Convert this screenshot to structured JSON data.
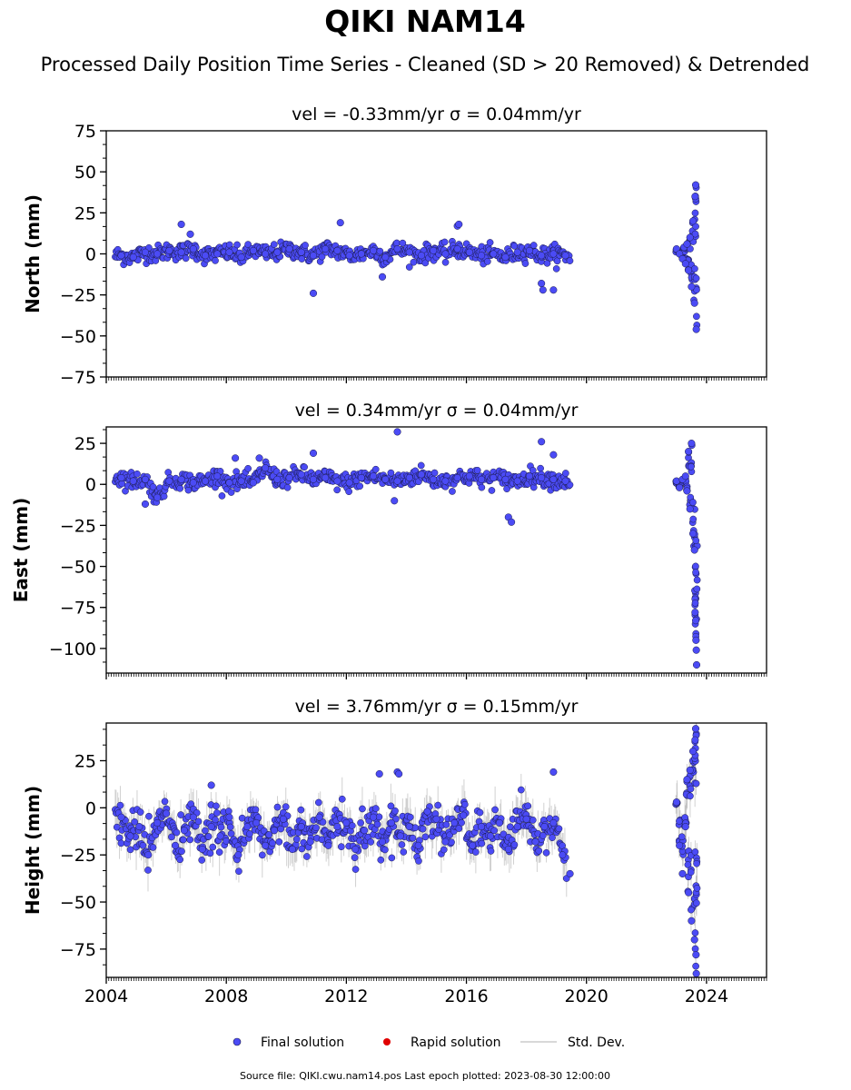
{
  "figure": {
    "title": "QIKI NAM14",
    "subtitle": "Processed Daily Position Time Series - Cleaned (SD > 20 Removed) & Detrended",
    "footer": "Source file: QIKI.cwu.nam14.pos  Last epoch plotted: 2023-08-30 12:00:00"
  },
  "legend": {
    "items": [
      {
        "label": "Final solution",
        "kind": "dot",
        "color": "#4b4bf5"
      },
      {
        "label": "Rapid solution",
        "kind": "dot",
        "color": "#e00000"
      },
      {
        "label": "Std. Dev.",
        "kind": "line",
        "color": "#cccccc"
      }
    ]
  },
  "colors": {
    "final": "#4b4bf5",
    "final_edge": "#1a1a4a",
    "rapid": "#e00000",
    "stddev": "#bdbdbd"
  },
  "chart_data": [
    {
      "type": "scatter",
      "panel_title": "vel = -0.33mm/yr   σ = 0.04mm/yr",
      "ylabel": "North (mm)",
      "ylim": [
        -75,
        75
      ],
      "yticks": [
        -75,
        -50,
        -25,
        0,
        25,
        50,
        75
      ],
      "ytick_labels": [
        "−75",
        "−50",
        "−25",
        "0",
        "25",
        "50",
        "75"
      ],
      "xlim": [
        2004.0,
        2026.0
      ],
      "xticks": [
        2004,
        2008,
        2012,
        2016,
        2020,
        2024
      ],
      "show_xtick_labels": false,
      "series": [
        {
          "x": [
            2004.5,
            2004.9,
            2005.3,
            2005.7,
            2006.1,
            2006.5,
            2006.9,
            2007.3,
            2007.7,
            2008.1,
            2008.5,
            2008.9,
            2009.3,
            2009.7,
            2010.1,
            2010.5,
            2010.9,
            2011.3,
            2011.7,
            2012.1,
            2012.5,
            2012.9,
            2013.3,
            2013.7,
            2014.1,
            2014.5,
            2014.9,
            2015.3,
            2015.7,
            2016.1,
            2016.5,
            2016.9,
            2017.3,
            2017.7,
            2018.1,
            2018.5,
            2018.9,
            2019.3
          ],
          "y": [
            -1,
            -2,
            1,
            0,
            2,
            1,
            3,
            -1,
            0,
            1,
            -2,
            2,
            0,
            1,
            3,
            1,
            -1,
            3,
            2,
            -1,
            0,
            2,
            -2,
            3,
            1,
            -1,
            2,
            0,
            3,
            1,
            -1,
            0,
            -2,
            1,
            2,
            -1,
            0,
            -1
          ]
        },
        {
          "x": [
            2006.5,
            2006.8,
            2010.9,
            2011.8,
            2013.2,
            2015.7,
            2015.75,
            2018.5,
            2018.55,
            2018.9
          ],
          "y": [
            18,
            12,
            -24,
            19,
            -14,
            17,
            18,
            -18,
            -22,
            -22
          ]
        },
        {
          "x": [
            2023.0,
            2023.1,
            2023.2,
            2023.25,
            2023.3,
            2023.35,
            2023.4,
            2023.45,
            2023.5,
            2023.55,
            2023.6,
            2023.62,
            2023.64,
            2023.66
          ],
          "y": [
            3,
            0,
            -3,
            4,
            -6,
            6,
            -10,
            10,
            -20,
            20,
            -30,
            35,
            42,
            -46
          ]
        }
      ]
    },
    {
      "type": "scatter",
      "panel_title": "vel = 0.34mm/yr   σ = 0.04mm/yr",
      "ylabel": "East (mm)",
      "ylim": [
        -115,
        35
      ],
      "yticks": [
        -100,
        -75,
        -50,
        -25,
        0,
        25
      ],
      "ytick_labels": [
        "−100",
        "−75",
        "−50",
        "−25",
        "0",
        "25"
      ],
      "xlim": [
        2004.0,
        2026.0
      ],
      "xticks": [
        2004,
        2008,
        2012,
        2016,
        2020,
        2024
      ],
      "show_xtick_labels": false,
      "series": [
        {
          "x": [
            2004.5,
            2004.9,
            2005.3,
            2005.7,
            2006.1,
            2006.5,
            2006.9,
            2007.3,
            2007.7,
            2008.1,
            2008.5,
            2008.9,
            2009.3,
            2009.7,
            2010.1,
            2010.5,
            2010.9,
            2011.3,
            2011.7,
            2012.1,
            2012.5,
            2012.9,
            2013.3,
            2013.7,
            2014.1,
            2014.5,
            2014.9,
            2015.3,
            2015.7,
            2016.1,
            2016.5,
            2016.9,
            2017.3,
            2017.7,
            2018.1,
            2018.5,
            2018.9,
            2019.3
          ],
          "y": [
            4,
            2,
            3,
            -8,
            2,
            3,
            1,
            2,
            5,
            1,
            2,
            1,
            10,
            3,
            4,
            6,
            3,
            4,
            2,
            1,
            4,
            5,
            3,
            2,
            4,
            6,
            3,
            2,
            4,
            5,
            3,
            4,
            3,
            2,
            5,
            4,
            3,
            2
          ]
        },
        {
          "x": [
            2005.3,
            2008.3,
            2009.1,
            2010.9,
            2013.6,
            2013.7,
            2017.4,
            2017.5,
            2018.5,
            2018.9
          ],
          "y": [
            -12,
            16,
            16,
            19,
            -10,
            32,
            -20,
            -23,
            26,
            18
          ]
        },
        {
          "x": [
            2023.0,
            2023.1,
            2023.2,
            2023.3,
            2023.35,
            2023.4,
            2023.45,
            2023.5,
            2023.55,
            2023.6,
            2023.62,
            2023.64,
            2023.65,
            2023.66,
            2023.67
          ],
          "y": [
            2,
            -2,
            3,
            5,
            -4,
            20,
            -15,
            25,
            -30,
            -40,
            -78,
            -83,
            -95,
            -101,
            -110
          ]
        }
      ]
    },
    {
      "type": "scatter",
      "panel_title": "vel = 3.76mm/yr   σ = 0.15mm/yr",
      "ylabel": "Height (mm)",
      "ylim": [
        -90,
        45
      ],
      "yticks": [
        -75,
        -50,
        -25,
        0,
        25
      ],
      "ytick_labels": [
        "−75",
        "−50",
        "−25",
        "0",
        "25"
      ],
      "xlim": [
        2004.0,
        2026.0
      ],
      "xticks": [
        2004,
        2008,
        2012,
        2016,
        2020,
        2024
      ],
      "xtick_labels": [
        "2004",
        "2008",
        "2012",
        "2016",
        "2020",
        "2024"
      ],
      "show_xtick_labels": true,
      "series": [
        {
          "x": [
            2004.5,
            2004.8,
            2005.1,
            2005.4,
            2005.7,
            2006.0,
            2006.3,
            2006.6,
            2006.9,
            2007.2,
            2007.5,
            2007.8,
            2008.1,
            2008.4,
            2008.7,
            2009.0,
            2009.3,
            2009.6,
            2009.9,
            2010.2,
            2010.5,
            2010.8,
            2011.1,
            2011.4,
            2011.7,
            2012.0,
            2012.3,
            2012.6,
            2012.9,
            2013.2,
            2013.5,
            2013.8,
            2014.1,
            2014.4,
            2014.7,
            2015.0,
            2015.3,
            2015.6,
            2015.9,
            2016.2,
            2016.5,
            2016.8,
            2017.1,
            2017.4,
            2017.7,
            2018.0,
            2018.3,
            2018.6,
            2018.9,
            2019.2
          ],
          "y": [
            -5,
            -15,
            -10,
            -25,
            -8,
            -3,
            -20,
            -12,
            -5,
            -22,
            -10,
            -15,
            -5,
            -25,
            -10,
            -8,
            -20,
            -12,
            -6,
            -22,
            -10,
            -18,
            -5,
            -20,
            -10,
            -8,
            -22,
            -12,
            -5,
            -18,
            -8,
            -15,
            -10,
            -20,
            -2,
            -6,
            -18,
            -8,
            -4,
            -20,
            -10,
            -15,
            -8,
            -22,
            -10,
            -6,
            -18,
            -10,
            -8,
            -25
          ]
        },
        {
          "x": [
            2007.5,
            2013.1,
            2013.7,
            2013.75,
            2018.9,
            2019.45
          ],
          "y": [
            12,
            18,
            19,
            18,
            19,
            -35
          ]
        },
        {
          "x": [
            2023.0,
            2023.1,
            2023.2,
            2023.3,
            2023.35,
            2023.4,
            2023.45,
            2023.5,
            2023.55,
            2023.6,
            2023.62,
            2023.64,
            2023.65,
            2023.66
          ],
          "y": [
            3,
            -20,
            -35,
            -10,
            15,
            -45,
            20,
            -60,
            30,
            -70,
            36,
            42,
            -78,
            -88
          ]
        }
      ]
    }
  ]
}
